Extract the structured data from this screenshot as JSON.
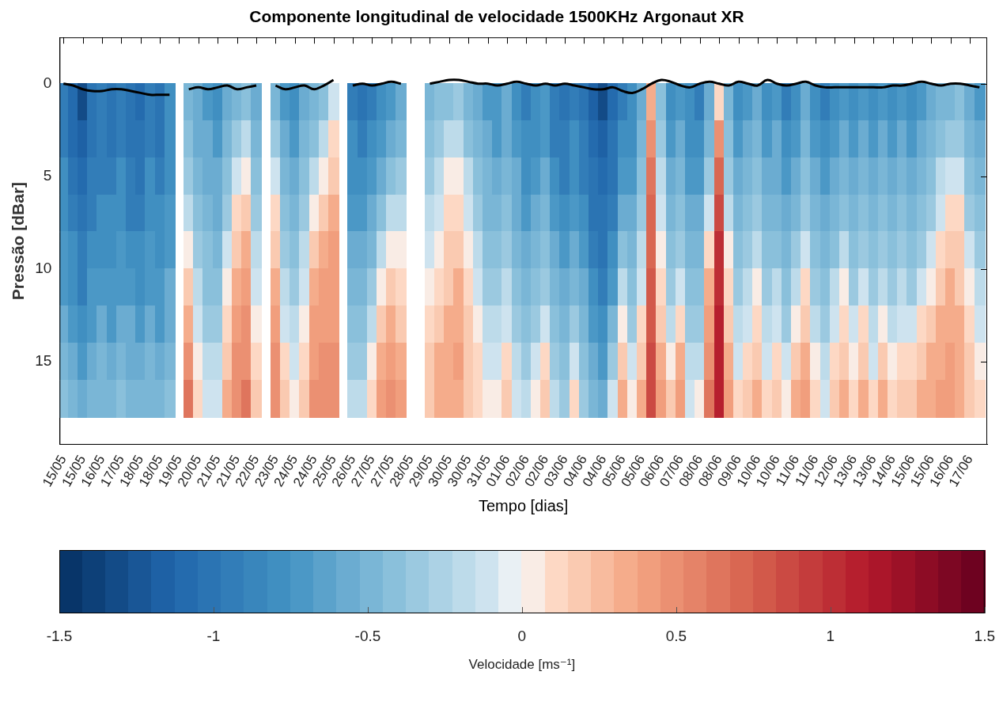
{
  "chart_data": {
    "type": "heatmap",
    "title": "Componente longitudinal de velocidade 1500KHz Argonaut XR",
    "x_label": "Tempo [dias]",
    "y_label": "Pressão [dBar]",
    "xlim": [
      -0.2,
      47.9
    ],
    "xticks": [
      {
        "value": 0,
        "label": "15/05"
      },
      {
        "value": 1,
        "label": "15/05"
      },
      {
        "value": 2,
        "label": "16/05"
      },
      {
        "value": 3,
        "label": "17/05"
      },
      {
        "value": 4,
        "label": "18/05"
      },
      {
        "value": 5,
        "label": "18/05"
      },
      {
        "value": 6,
        "label": "19/05"
      },
      {
        "value": 7,
        "label": "20/05"
      },
      {
        "value": 8,
        "label": "21/05"
      },
      {
        "value": 9,
        "label": "21/05"
      },
      {
        "value": 10,
        "label": "22/05"
      },
      {
        "value": 11,
        "label": "23/05"
      },
      {
        "value": 12,
        "label": "24/05"
      },
      {
        "value": 13,
        "label": "24/05"
      },
      {
        "value": 14,
        "label": "25/05"
      },
      {
        "value": 15,
        "label": "26/05"
      },
      {
        "value": 16,
        "label": "27/05"
      },
      {
        "value": 17,
        "label": "27/05"
      },
      {
        "value": 18,
        "label": "28/05"
      },
      {
        "value": 19,
        "label": "29/05"
      },
      {
        "value": 20,
        "label": "30/05"
      },
      {
        "value": 21,
        "label": "30/05"
      },
      {
        "value": 22,
        "label": "31/05"
      },
      {
        "value": 23,
        "label": "01/06"
      },
      {
        "value": 24,
        "label": "02/06"
      },
      {
        "value": 25,
        "label": "02/06"
      },
      {
        "value": 26,
        "label": "03/06"
      },
      {
        "value": 27,
        "label": "04/06"
      },
      {
        "value": 28,
        "label": "04/06"
      },
      {
        "value": 29,
        "label": "05/06"
      },
      {
        "value": 30,
        "label": "05/06"
      },
      {
        "value": 31,
        "label": "06/06"
      },
      {
        "value": 32,
        "label": "07/06"
      },
      {
        "value": 33,
        "label": "08/06"
      },
      {
        "value": 34,
        "label": "08/06"
      },
      {
        "value": 35,
        "label": "09/06"
      },
      {
        "value": 36,
        "label": "10/06"
      },
      {
        "value": 37,
        "label": "10/06"
      },
      {
        "value": 38,
        "label": "11/06"
      },
      {
        "value": 39,
        "label": "11/06"
      },
      {
        "value": 40,
        "label": "12/06"
      },
      {
        "value": 41,
        "label": "13/06"
      },
      {
        "value": 42,
        "label": "13/06"
      },
      {
        "value": 43,
        "label": "14/06"
      },
      {
        "value": 44,
        "label": "15/06"
      },
      {
        "value": 45,
        "label": "15/06"
      },
      {
        "value": 46,
        "label": "16/06"
      },
      {
        "value": 47,
        "label": "17/06"
      }
    ],
    "ylim": [
      19.5,
      -2.5
    ],
    "yticks": [
      0,
      5,
      10,
      15
    ],
    "grid": false,
    "x": [
      0,
      0.5,
      1,
      1.5,
      2,
      2.5,
      3,
      3.5,
      4,
      4.5,
      5,
      5.5,
      6,
      6.5,
      7,
      7.5,
      8,
      8.5,
      9,
      9.5,
      10,
      10.5,
      11,
      11.5,
      12,
      12.5,
      13,
      13.5,
      14,
      14.5,
      15,
      15.5,
      16,
      16.5,
      17,
      17.5,
      18,
      18.5,
      19,
      19.5,
      20,
      20.5,
      21,
      21.5,
      22,
      22.5,
      23,
      23.5,
      24,
      24.5,
      25,
      25.5,
      26,
      26.5,
      27,
      27.5,
      28,
      28.5,
      29,
      29.5,
      30,
      30.5,
      31,
      31.5,
      32,
      32.5,
      33,
      33.5,
      34,
      34.5,
      35,
      35.5,
      36,
      36.5,
      37,
      37.5,
      38,
      38.5,
      39,
      39.5,
      40,
      40.5,
      41,
      41.5,
      42,
      42.5,
      43,
      43.5,
      44,
      44.5,
      45,
      45.5,
      46,
      46.5,
      47,
      47.5
    ],
    "pressure": [
      1,
      3,
      5,
      7,
      9,
      11,
      13,
      15,
      17
    ],
    "cells": [
      [
        -0.9,
        -0.9,
        -0.8,
        -0.8,
        -0.7,
        -0.7,
        -0.6,
        -0.5,
        -0.4
      ],
      [
        -1.1,
        -1.1,
        -1.0,
        -0.9,
        -0.8,
        -0.8,
        -0.7,
        -0.6,
        -0.5
      ],
      [
        -1.3,
        -1.2,
        -1.1,
        -1.0,
        -0.9,
        -0.9,
        -0.8,
        -0.7,
        -0.6
      ],
      [
        -1.0,
        -1.0,
        -0.9,
        -0.9,
        -0.8,
        -0.7,
        -0.7,
        -0.6,
        -0.5
      ],
      [
        -0.9,
        -0.9,
        -0.9,
        -0.8,
        -0.8,
        -0.7,
        -0.6,
        -0.5,
        -0.5
      ],
      [
        -1.0,
        -1.0,
        -0.9,
        -0.8,
        -0.8,
        -0.7,
        -0.7,
        -0.6,
        -0.5
      ],
      [
        -0.9,
        -0.9,
        -0.8,
        -0.8,
        -0.7,
        -0.7,
        -0.6,
        -0.5,
        -0.4
      ],
      [
        -1.0,
        -1.0,
        -0.9,
        -0.9,
        -0.8,
        -0.7,
        -0.6,
        -0.6,
        -0.5
      ],
      [
        -1.1,
        -1.0,
        -1.0,
        -0.9,
        -0.8,
        -0.8,
        -0.7,
        -0.6,
        -0.5
      ],
      [
        -0.9,
        -0.9,
        -0.8,
        -0.8,
        -0.7,
        -0.7,
        -0.6,
        -0.5,
        -0.5
      ],
      [
        -1.0,
        -1.0,
        -0.9,
        -0.8,
        -0.8,
        -0.7,
        -0.7,
        -0.6,
        -0.5
      ],
      [
        -0.8,
        -0.8,
        -0.8,
        -0.7,
        -0.7,
        -0.6,
        -0.6,
        -0.5,
        -0.4
      ],
      null,
      [
        -0.5,
        -0.4,
        -0.3,
        -0.2,
        0.0,
        0.2,
        0.3,
        0.5,
        0.6
      ],
      [
        -0.6,
        -0.6,
        -0.5,
        -0.4,
        -0.3,
        -0.2,
        -0.1,
        0.0,
        0.1
      ],
      [
        -0.7,
        -0.6,
        -0.6,
        -0.5,
        -0.4,
        -0.4,
        -0.3,
        -0.2,
        -0.1
      ],
      [
        -0.8,
        -0.7,
        -0.6,
        -0.6,
        -0.5,
        -0.4,
        -0.3,
        -0.2,
        -0.1
      ],
      [
        -0.6,
        -0.5,
        -0.4,
        -0.3,
        -0.1,
        0.0,
        0.1,
        0.2,
        0.3
      ],
      [
        -0.5,
        -0.3,
        -0.1,
        0.1,
        0.2,
        0.3,
        0.4,
        0.5,
        0.5
      ],
      [
        -0.4,
        -0.2,
        0.0,
        0.2,
        0.3,
        0.4,
        0.5,
        0.5,
        0.6
      ],
      [
        -0.6,
        -0.5,
        -0.4,
        -0.3,
        -0.2,
        -0.1,
        0.0,
        0.1,
        0.2
      ],
      null,
      [
        -0.5,
        -0.3,
        -0.1,
        0.1,
        0.2,
        0.3,
        0.4,
        0.5,
        0.5
      ],
      [
        -0.7,
        -0.6,
        -0.5,
        -0.4,
        -0.3,
        -0.2,
        -0.1,
        0.1,
        0.2
      ],
      [
        -0.8,
        -0.7,
        -0.6,
        -0.5,
        -0.4,
        -0.3,
        -0.2,
        -0.1,
        0.0
      ],
      [
        -0.6,
        -0.5,
        -0.4,
        -0.3,
        -0.2,
        -0.1,
        0.0,
        0.1,
        0.2
      ],
      [
        -0.5,
        -0.4,
        -0.2,
        0.0,
        0.2,
        0.3,
        0.4,
        0.4,
        0.5
      ],
      [
        -0.4,
        -0.2,
        0.0,
        0.2,
        0.3,
        0.4,
        0.4,
        0.5,
        0.5
      ],
      [
        -0.1,
        0.1,
        0.2,
        0.3,
        0.4,
        0.4,
        0.4,
        0.5,
        0.5
      ],
      null,
      [
        -0.9,
        -0.8,
        -0.8,
        -0.7,
        -0.6,
        -0.5,
        -0.4,
        -0.3,
        -0.2
      ],
      [
        -1.0,
        -0.9,
        -0.8,
        -0.7,
        -0.6,
        -0.5,
        -0.4,
        -0.3,
        -0.2
      ],
      [
        -0.9,
        -0.8,
        -0.7,
        -0.6,
        -0.5,
        -0.3,
        -0.2,
        0.0,
        0.1
      ],
      [
        -0.8,
        -0.7,
        -0.6,
        -0.4,
        -0.2,
        0.0,
        0.2,
        0.3,
        0.4
      ],
      [
        -0.7,
        -0.6,
        -0.4,
        -0.2,
        0.0,
        0.2,
        0.3,
        0.4,
        0.5
      ],
      [
        -0.6,
        -0.5,
        -0.3,
        -0.2,
        0.0,
        0.1,
        0.2,
        0.3,
        0.4
      ],
      null,
      null,
      [
        -0.5,
        -0.4,
        -0.3,
        -0.2,
        -0.1,
        0.0,
        0.1,
        0.2,
        0.2
      ],
      [
        -0.4,
        -0.3,
        -0.2,
        -0.1,
        0.0,
        0.1,
        0.2,
        0.3,
        0.3
      ],
      [
        -0.4,
        -0.2,
        0.0,
        0.1,
        0.2,
        0.2,
        0.3,
        0.3,
        0.3
      ],
      [
        -0.3,
        -0.2,
        0.0,
        0.1,
        0.2,
        0.3,
        0.3,
        0.4,
        0.3
      ],
      [
        -0.5,
        -0.4,
        -0.2,
        -0.1,
        0.0,
        0.1,
        0.2,
        0.2,
        0.2
      ],
      [
        -0.6,
        -0.5,
        -0.4,
        -0.3,
        -0.2,
        -0.1,
        0.0,
        0.1,
        0.1
      ],
      [
        -0.7,
        -0.6,
        -0.5,
        -0.5,
        -0.4,
        -0.3,
        -0.2,
        -0.1,
        0.0
      ],
      [
        -0.7,
        -0.7,
        -0.6,
        -0.5,
        -0.4,
        -0.3,
        -0.2,
        -0.1,
        0.0
      ],
      [
        -0.6,
        -0.6,
        -0.5,
        -0.4,
        -0.3,
        -0.2,
        -0.1,
        0.1,
        0.2
      ],
      [
        -0.8,
        -0.7,
        -0.6,
        -0.6,
        -0.5,
        -0.4,
        -0.3,
        -0.2,
        -0.1
      ],
      [
        -0.9,
        -0.8,
        -0.8,
        -0.7,
        -0.6,
        -0.5,
        -0.4,
        -0.3,
        -0.2
      ],
      [
        -0.8,
        -0.8,
        -0.7,
        -0.6,
        -0.5,
        -0.4,
        -0.3,
        -0.1,
        0.0
      ],
      [
        -0.7,
        -0.7,
        -0.6,
        -0.5,
        -0.4,
        -0.3,
        -0.1,
        0.1,
        0.2
      ],
      [
        -0.9,
        -0.9,
        -0.8,
        -0.7,
        -0.6,
        -0.5,
        -0.4,
        -0.3,
        -0.2
      ],
      [
        -1.0,
        -0.9,
        -0.9,
        -0.8,
        -0.7,
        -0.6,
        -0.5,
        -0.4,
        -0.3
      ],
      [
        -0.9,
        -0.8,
        -0.8,
        -0.7,
        -0.6,
        -0.5,
        -0.3,
        -0.1,
        0.1
      ],
      [
        -1.0,
        -0.9,
        -0.9,
        -0.8,
        -0.7,
        -0.6,
        -0.5,
        -0.4,
        -0.3
      ],
      [
        -1.2,
        -1.1,
        -1.0,
        -1.0,
        -0.9,
        -0.8,
        -0.7,
        -0.6,
        -0.5
      ],
      [
        -1.3,
        -1.2,
        -1.1,
        -1.0,
        -1.0,
        -0.9,
        -0.8,
        -0.7,
        -0.6
      ],
      [
        -1.1,
        -1.0,
        -1.0,
        -0.9,
        -0.8,
        -0.7,
        -0.5,
        -0.3,
        -0.1
      ],
      [
        -0.9,
        -0.8,
        -0.7,
        -0.6,
        -0.4,
        -0.2,
        0.0,
        0.2,
        0.3
      ],
      [
        -0.8,
        -0.8,
        -0.7,
        -0.6,
        -0.5,
        -0.4,
        -0.3,
        -0.1,
        0.0
      ],
      [
        -0.6,
        -0.5,
        -0.4,
        -0.3,
        -0.2,
        -0.1,
        0.1,
        0.2,
        0.3
      ],
      [
        0.3,
        0.5,
        0.6,
        0.7,
        0.7,
        0.8,
        0.8,
        0.9,
        0.9
      ],
      [
        -0.4,
        -0.3,
        -0.2,
        -0.1,
        0.0,
        0.1,
        0.2,
        0.3,
        0.4
      ],
      [
        -0.8,
        -0.7,
        -0.6,
        -0.5,
        -0.4,
        -0.3,
        -0.2,
        0.0,
        0.2
      ],
      [
        -0.7,
        -0.6,
        -0.5,
        -0.4,
        -0.3,
        -0.1,
        0.1,
        0.3,
        0.4
      ],
      [
        -0.8,
        -0.8,
        -0.7,
        -0.6,
        -0.5,
        -0.4,
        -0.3,
        -0.2,
        -0.1
      ],
      [
        -0.9,
        -0.8,
        -0.7,
        -0.6,
        -0.5,
        -0.4,
        -0.3,
        -0.2,
        0.0
      ],
      [
        -0.6,
        -0.5,
        -0.3,
        -0.1,
        0.1,
        0.3,
        0.4,
        0.5,
        0.6
      ],
      [
        0.1,
        0.5,
        0.7,
        0.9,
        1.0,
        1.0,
        1.1,
        1.1,
        1.1
      ],
      [
        -0.5,
        -0.4,
        -0.3,
        -0.2,
        0.0,
        0.1,
        0.2,
        0.3,
        0.4
      ],
      [
        -0.8,
        -0.7,
        -0.6,
        -0.5,
        -0.4,
        -0.3,
        -0.2,
        -0.1,
        0.1
      ],
      [
        -0.7,
        -0.6,
        -0.5,
        -0.4,
        -0.3,
        -0.2,
        -0.1,
        0.1,
        0.2
      ],
      [
        -0.6,
        -0.5,
        -0.4,
        -0.3,
        -0.2,
        0.0,
        0.1,
        0.2,
        0.3
      ],
      [
        -0.8,
        -0.7,
        -0.6,
        -0.5,
        -0.4,
        -0.3,
        -0.2,
        -0.1,
        0.1
      ],
      [
        -0.7,
        -0.6,
        -0.6,
        -0.5,
        -0.4,
        -0.2,
        -0.1,
        0.1,
        0.2
      ],
      [
        -0.9,
        -0.8,
        -0.7,
        -0.6,
        -0.5,
        -0.4,
        -0.3,
        -0.1,
        0.0
      ],
      [
        -0.8,
        -0.7,
        -0.6,
        -0.5,
        -0.3,
        -0.2,
        0.0,
        0.2,
        0.3
      ],
      [
        -0.6,
        -0.5,
        -0.4,
        -0.3,
        -0.1,
        0.1,
        0.2,
        0.3,
        0.4
      ],
      [
        -0.8,
        -0.7,
        -0.6,
        -0.5,
        -0.4,
        -0.3,
        -0.2,
        0.0,
        0.1
      ],
      [
        -0.9,
        -0.8,
        -0.7,
        -0.6,
        -0.5,
        -0.4,
        -0.3,
        -0.2,
        -0.1
      ],
      [
        -0.8,
        -0.7,
        -0.6,
        -0.5,
        -0.4,
        -0.2,
        -0.1,
        0.1,
        0.2
      ],
      [
        -0.7,
        -0.6,
        -0.5,
        -0.4,
        -0.2,
        0.0,
        0.1,
        0.2,
        0.3
      ],
      [
        -0.8,
        -0.7,
        -0.6,
        -0.5,
        -0.4,
        -0.3,
        -0.1,
        0.0,
        0.1
      ],
      [
        -0.7,
        -0.6,
        -0.5,
        -0.4,
        -0.3,
        -0.1,
        0.1,
        0.2,
        0.3
      ],
      [
        -0.8,
        -0.7,
        -0.6,
        -0.5,
        -0.4,
        -0.3,
        -0.2,
        -0.1,
        0.1
      ],
      [
        -0.7,
        -0.6,
        -0.5,
        -0.4,
        -0.3,
        -0.2,
        0.0,
        0.2,
        0.3
      ],
      [
        -0.8,
        -0.7,
        -0.6,
        -0.5,
        -0.4,
        -0.3,
        -0.2,
        0.0,
        0.1
      ],
      [
        -0.7,
        -0.6,
        -0.5,
        -0.4,
        -0.3,
        -0.2,
        -0.1,
        0.1,
        0.2
      ],
      [
        -0.8,
        -0.7,
        -0.6,
        -0.5,
        -0.4,
        -0.3,
        -0.1,
        0.1,
        0.2
      ],
      [
        -0.7,
        -0.6,
        -0.5,
        -0.4,
        -0.3,
        -0.1,
        0.1,
        0.2,
        0.3
      ],
      [
        -0.6,
        -0.5,
        -0.4,
        -0.3,
        -0.1,
        0.0,
        0.2,
        0.3,
        0.3
      ],
      [
        -0.5,
        -0.4,
        -0.2,
        -0.1,
        0.1,
        0.2,
        0.3,
        0.3,
        0.4
      ],
      [
        -0.5,
        -0.3,
        -0.1,
        0.1,
        0.2,
        0.3,
        0.3,
        0.4,
        0.4
      ],
      [
        -0.4,
        -0.3,
        -0.1,
        0.1,
        0.2,
        0.2,
        0.3,
        0.3,
        0.3
      ],
      [
        -0.6,
        -0.5,
        -0.4,
        -0.3,
        -0.1,
        0.0,
        0.1,
        0.2,
        0.2
      ],
      [
        -0.7,
        -0.6,
        -0.5,
        -0.4,
        -0.3,
        -0.2,
        -0.1,
        0.0,
        0.1
      ]
    ],
    "surface": {
      "color": "#000000",
      "values": [
        0.0,
        0.1,
        0.3,
        0.4,
        0.4,
        0.3,
        0.3,
        0.4,
        0.5,
        0.6,
        0.6,
        0.6,
        null,
        0.3,
        0.2,
        0.3,
        0.2,
        0.1,
        0.3,
        0.2,
        0.1,
        null,
        0.1,
        0.3,
        0.2,
        0.1,
        0.3,
        0.1,
        -0.2,
        null,
        0.1,
        0.0,
        0.1,
        0.0,
        -0.1,
        0.0,
        null,
        null,
        0.0,
        -0.1,
        -0.2,
        -0.2,
        -0.1,
        0.0,
        0.0,
        0.1,
        0.0,
        -0.1,
        0.0,
        0.1,
        0.0,
        0.1,
        0.0,
        0.1,
        0.2,
        0.3,
        0.3,
        0.2,
        0.4,
        0.5,
        0.3,
        0.0,
        -0.2,
        -0.1,
        0.1,
        0.2,
        0.0,
        -0.1,
        0.0,
        0.1,
        -0.1,
        0.0,
        0.1,
        -0.2,
        0.0,
        0.1,
        0.0,
        -0.1,
        0.1,
        0.2,
        0.2,
        0.2,
        0.2,
        0.2,
        0.2,
        0.2,
        0.1,
        0.1,
        0.0,
        -0.1,
        0.0,
        0.1,
        0.0,
        0.0,
        0.1,
        0.2
      ]
    },
    "colorbar": {
      "range": [
        -1.5,
        1.5
      ],
      "ticks": [
        -1.5,
        -1,
        -0.5,
        0,
        0.5,
        1,
        1.5
      ],
      "label": "Velocidade [ms⁻¹]"
    }
  }
}
